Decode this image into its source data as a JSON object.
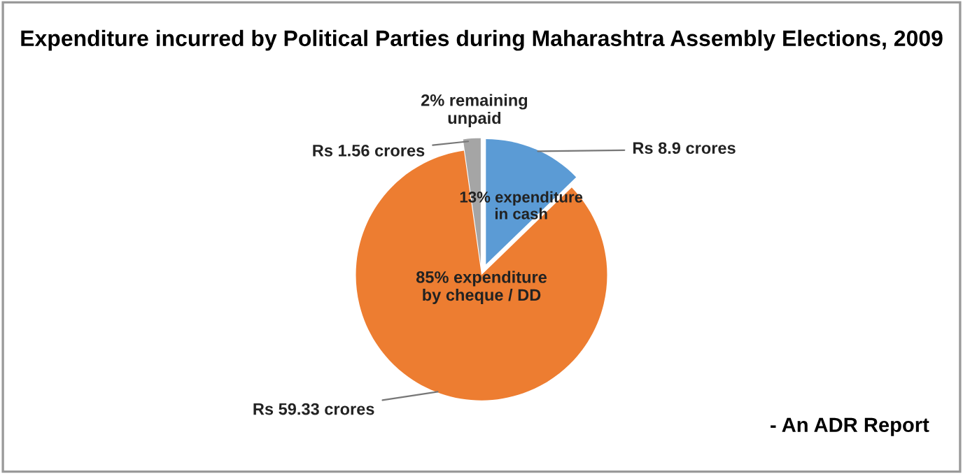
{
  "chart_data": {
    "type": "pie",
    "title": "Expenditure incurred by Political Parties during Maharashtra Assembly Elections, 2009",
    "categories": [
      "13% expenditure\nin cash",
      "85% expenditure\nby cheque / DD",
      "2% remaining\nunpaid"
    ],
    "values": [
      8.9,
      59.33,
      1.56
    ],
    "colors": [
      "#5b9bd5",
      "#ed7d31",
      "#a5a5a5"
    ],
    "value_labels": [
      "Rs 8.9 crores",
      "Rs 59.33 crores",
      "Rs 1.56 crores"
    ],
    "annotations": [
      "- An ADR Report"
    ]
  }
}
